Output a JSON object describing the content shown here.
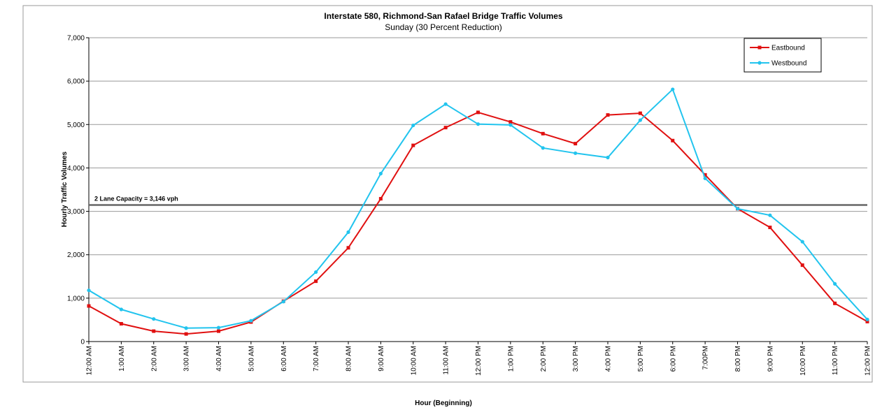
{
  "chart_data": {
    "type": "line",
    "title": "Interstate 580, Richmond-San Rafael Bridge Traffic Volumes",
    "subtitle": "Sunday (30 Percent Reduction)",
    "x_label": "Hour (Beginning)",
    "y_label": "Hourly Traffic Volumes",
    "categories": [
      "12:00 AM",
      "1:00 AM",
      "2:00 AM",
      "3:00 AM",
      "4:00 AM",
      "5:00 AM",
      "6:00 AM",
      "7:00 AM",
      "8:00 AM",
      "9:00 AM",
      "10:00 AM",
      "11:00 AM",
      "12:00 PM",
      "1:00 PM",
      "2:00 PM",
      "3:00 PM",
      "4:00 PM",
      "5:00 PM",
      "6:00 PM",
      "7:00PM",
      "8:00 PM",
      "9:00 PM",
      "10:00 PM",
      "11:00 PM",
      "12:00 PM"
    ],
    "series": [
      {
        "name": "Eastbound",
        "color": "#e01010",
        "marker": "square",
        "values": [
          820,
          410,
          240,
          175,
          240,
          450,
          930,
          1390,
          2160,
          3290,
          4520,
          4930,
          5280,
          5060,
          4790,
          4560,
          5220,
          5260,
          4630,
          3840,
          3060,
          2630,
          1760,
          880,
          460
        ]
      },
      {
        "name": "Westbound",
        "color": "#22c4ee",
        "marker": "circle",
        "values": [
          1180,
          740,
          520,
          310,
          320,
          480,
          920,
          1600,
          2520,
          3870,
          4980,
          5470,
          5010,
          4990,
          4460,
          4340,
          4240,
          5100,
          5810,
          3760,
          3060,
          2910,
          2300,
          1330,
          510
        ]
      }
    ],
    "ylim": [
      0,
      7000
    ],
    "yticks": [
      0,
      {
        "value": 1000,
        "label": "1,000"
      },
      {
        "value": 2000,
        "label": "2,000"
      },
      {
        "value": 3000,
        "label": "3,000"
      },
      {
        "value": 4000,
        "label": "4,000"
      },
      {
        "value": 5000,
        "label": "5,000"
      },
      {
        "value": 6000,
        "label": "6,000"
      },
      {
        "value": 7000,
        "label": "7,000"
      }
    ],
    "grid": true,
    "legend": "top-right",
    "reference_line": {
      "value": 3146,
      "label": "2 Lane Capacity = 3,146 vph",
      "color": "#666666"
    }
  }
}
